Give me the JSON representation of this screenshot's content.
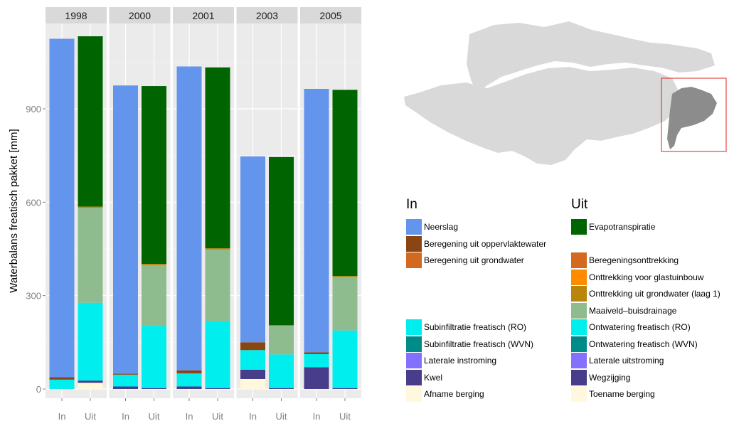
{
  "chart_data": {
    "type": "bar",
    "stacked": true,
    "facets": [
      "1998",
      "2000",
      "2001",
      "2003",
      "2005"
    ],
    "categories": [
      "In",
      "Uit"
    ],
    "ylabel": "Waterbalans freatisch pakket [mm]",
    "yticks": [
      0,
      300,
      600,
      900
    ],
    "ylim": [
      0,
      1170
    ],
    "grid": true,
    "in_series": [
      {
        "name": "Afname berging",
        "color": "#FFF8DC",
        "values": [
          0,
          0,
          0,
          32,
          0
        ]
      },
      {
        "name": "Kwel",
        "color": "#483D8B",
        "values": [
          0,
          8,
          8,
          30,
          70
        ]
      },
      {
        "name": "Laterale instroming",
        "color": "#8470FF",
        "values": [
          0,
          0,
          0,
          0,
          0
        ]
      },
      {
        "name": "Subinfiltratie freatisch (WVN)",
        "color": "#008B8B",
        "values": [
          0,
          0,
          0,
          0,
          0
        ]
      },
      {
        "name": "Subinfiltratie freatisch (RO)",
        "color": "#00EEEE",
        "values": [
          30,
          38,
          42,
          63,
          42
        ]
      },
      {
        "name": "Beregening uit grondwater",
        "color": "#D2691E",
        "values": [
          0,
          0,
          0,
          0,
          0
        ]
      },
      {
        "name": "Beregening uit oppervlaktewater",
        "color": "#8B4513",
        "values": [
          8,
          3,
          10,
          25,
          6
        ]
      },
      {
        "name": "Neerslag",
        "color": "#6495ED",
        "values": [
          1087,
          926,
          976,
          597,
          846
        ]
      }
    ],
    "out_series": [
      {
        "name": "Toename berging",
        "color": "#FFF8DC",
        "values": [
          20,
          0,
          0,
          0,
          0
        ]
      },
      {
        "name": "Wegzijging",
        "color": "#483D8B",
        "values": [
          7,
          3,
          3,
          3,
          3
        ]
      },
      {
        "name": "Laterale uitstroming",
        "color": "#8470FF",
        "values": [
          0,
          0,
          0,
          0,
          0
        ]
      },
      {
        "name": "Ontwatering freatisch (WVN)",
        "color": "#008B8B",
        "values": [
          0,
          0,
          0,
          0,
          0
        ]
      },
      {
        "name": "Ontwatering freatisch (RO)",
        "color": "#00EEEE",
        "values": [
          250,
          200,
          215,
          108,
          185
        ]
      },
      {
        "name": "Maaiveld–buisdrainage",
        "color": "#8FBC8F",
        "values": [
          305,
          195,
          230,
          92,
          172
        ]
      },
      {
        "name": "Onttrekking uit grondwater (laag 1)",
        "color": "#B8860B",
        "values": [
          4,
          4,
          4,
          2,
          3
        ]
      },
      {
        "name": "Onttrekking voor glastuinbouw",
        "color": "#FF8C00",
        "values": [
          0,
          0,
          0,
          0,
          0
        ]
      },
      {
        "name": "Beregeningsonttrekking",
        "color": "#D2691E",
        "values": [
          0,
          0,
          0,
          0,
          0
        ]
      },
      {
        "name": "Evapotranspiratie",
        "color": "#006400",
        "values": [
          547,
          571,
          581,
          540,
          598
        ]
      }
    ]
  },
  "legend": {
    "in_title": "In",
    "uit_title": "Uit",
    "in_items": [
      {
        "label": "Neerslag",
        "color": "#6495ED",
        "slot": 0
      },
      {
        "label": "Beregening uit oppervlaktewater",
        "color": "#8B4513",
        "slot": 1
      },
      {
        "label": "Beregening uit grondwater",
        "color": "#D2691E",
        "slot": 2
      },
      {
        "label": "Subinfiltratie freatisch (RO)",
        "color": "#00EEEE",
        "slot": 6
      },
      {
        "label": "Subinfiltratie freatisch (WVN)",
        "color": "#008B8B",
        "slot": 7
      },
      {
        "label": "Laterale instroming",
        "color": "#8470FF",
        "slot": 8
      },
      {
        "label": "Kwel",
        "color": "#483D8B",
        "slot": 9
      },
      {
        "label": "Afname berging",
        "color": "#FFF8DC",
        "slot": 10
      }
    ],
    "uit_items": [
      {
        "label": "Evapotranspiratie",
        "color": "#006400",
        "slot": 0
      },
      {
        "label": "Beregeningsonttrekking",
        "color": "#D2691E",
        "slot": 2
      },
      {
        "label": "Onttrekking voor glastuinbouw",
        "color": "#FF8C00",
        "slot": 3
      },
      {
        "label": "Onttrekking uit grondwater (laag 1)",
        "color": "#B8860B",
        "slot": 4
      },
      {
        "label": "Maaiveld–buisdrainage",
        "color": "#8FBC8F",
        "slot": 5
      },
      {
        "label": "Ontwatering freatisch (RO)",
        "color": "#00EEEE",
        "slot": 6
      },
      {
        "label": "Ontwatering freatisch (WVN)",
        "color": "#008B8B",
        "slot": 7
      },
      {
        "label": "Laterale uitstroming",
        "color": "#8470FF",
        "slot": 8
      },
      {
        "label": "Wegzijging",
        "color": "#483D8B",
        "slot": 9
      },
      {
        "label": "Toename berging",
        "color": "#FFF8DC",
        "slot": 10
      }
    ]
  },
  "map": {
    "region_color": "#d9d9d9",
    "highlight_color": "#8c8c8c",
    "frame_color": "#e0201b"
  }
}
